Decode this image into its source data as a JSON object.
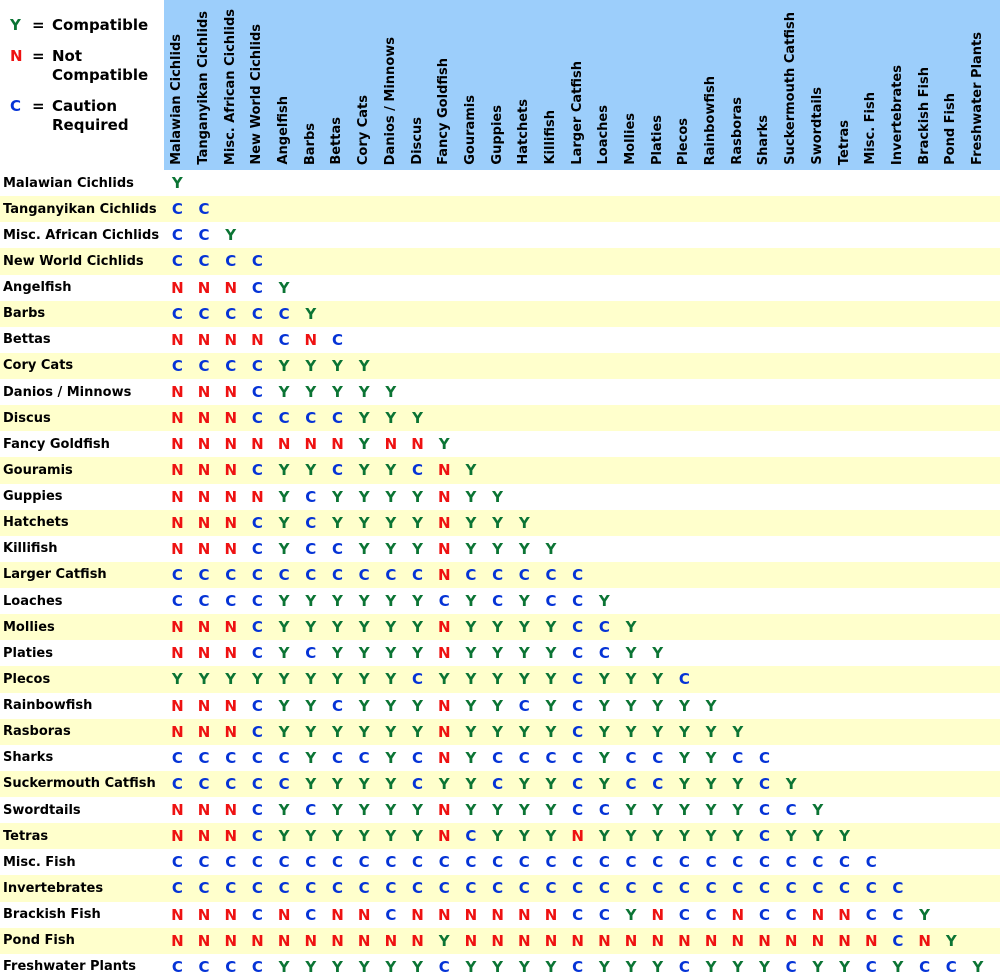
{
  "legend": {
    "equals": "=",
    "items": [
      {
        "code": "Y",
        "label": "Compatible"
      },
      {
        "code": "N",
        "label": "Not Compatible"
      },
      {
        "code": "C",
        "label": "Caution Required"
      }
    ]
  },
  "colors": {
    "header_bg": "#9CCEFB",
    "row_bg": "#FFFFFF",
    "row_alt_bg": "#FFFFCC",
    "compatible_green": "#0B7434",
    "not_compatible_red": "#EE1111",
    "caution_blue": "#0533D6",
    "text": "#000000"
  },
  "chart_data": {
    "type": "heatmap",
    "subtype": "lower-triangular compatibility matrix",
    "legend": {
      "Y": "Compatible",
      "N": "Not Compatible",
      "C": "Caution Required"
    },
    "categories": [
      "Malawian Cichlids",
      "Tanganyikan Cichlids",
      "Misc. African Cichlids",
      "New World Cichlids",
      "Angelfish",
      "Barbs",
      "Bettas",
      "Cory Cats",
      "Danios / Minnows",
      "Discus",
      "Fancy Goldfish",
      "Gouramis",
      "Guppies",
      "Hatchets",
      "Killifish",
      "Larger Catfish",
      "Loaches",
      "Mollies",
      "Platies",
      "Plecos",
      "Rainbowfish",
      "Rasboras",
      "Sharks",
      "Suckermouth Catfish",
      "Swordtails",
      "Tetras",
      "Misc. Fish",
      "Invertebrates",
      "Brackish Fish",
      "Pond Fish",
      "Freshwater Plants"
    ],
    "matrix": [
      "Y",
      "CC",
      "CCY",
      "CCCC",
      "NNNCY",
      "CCCCCY",
      "NNNNCNC",
      "CCCCYYYY",
      "NNNCYYYYY",
      "NNNCCCCYYY",
      "NNNNNNNYNNY",
      "NNNCYYCYYCNY",
      "NNNNYCYYYYNYY",
      "NNNCYCYYYYNYYY",
      "NNNCYCCYYYNYYYY",
      "CCCCCCCCCCNCCCCC",
      "CCCCYYYYYYCYCYCCY",
      "NNNCYYYYYYNYYYYCCY",
      "NNNCYCYYYYNYYYYCCYY",
      "YYYYYYYYYCYYYYYCYYYC",
      "NNNCYYCYYYNYYCYCYYYYY",
      "NNNCYYYYYYNYYYYCYYYYYY",
      "CCCCCYCCYCNYCCCCYCCYYCC",
      "CCCCCYYYYCYYCYYCYCCYYYCY",
      "NNNCYCYYYYNYYYYCCYYYYYCCY",
      "NNNCYYYYYYNCYYYNYYYYYYCYYY",
      "CCCCCCCCCCCCCCCCCCCCCCCCCCC",
      "CCCCCCCCCCCCCCCCCCCCCCCCCCCC",
      "NNNCNCNNCNNNNNNCCYNCCNCCNNCCY",
      "NNNNNNNNNNYNNNNNNNNNNNNNNNNCNY",
      "CCCCYYYYYYCYYYYCYYYCYYYCYYCYCCY"
    ]
  }
}
